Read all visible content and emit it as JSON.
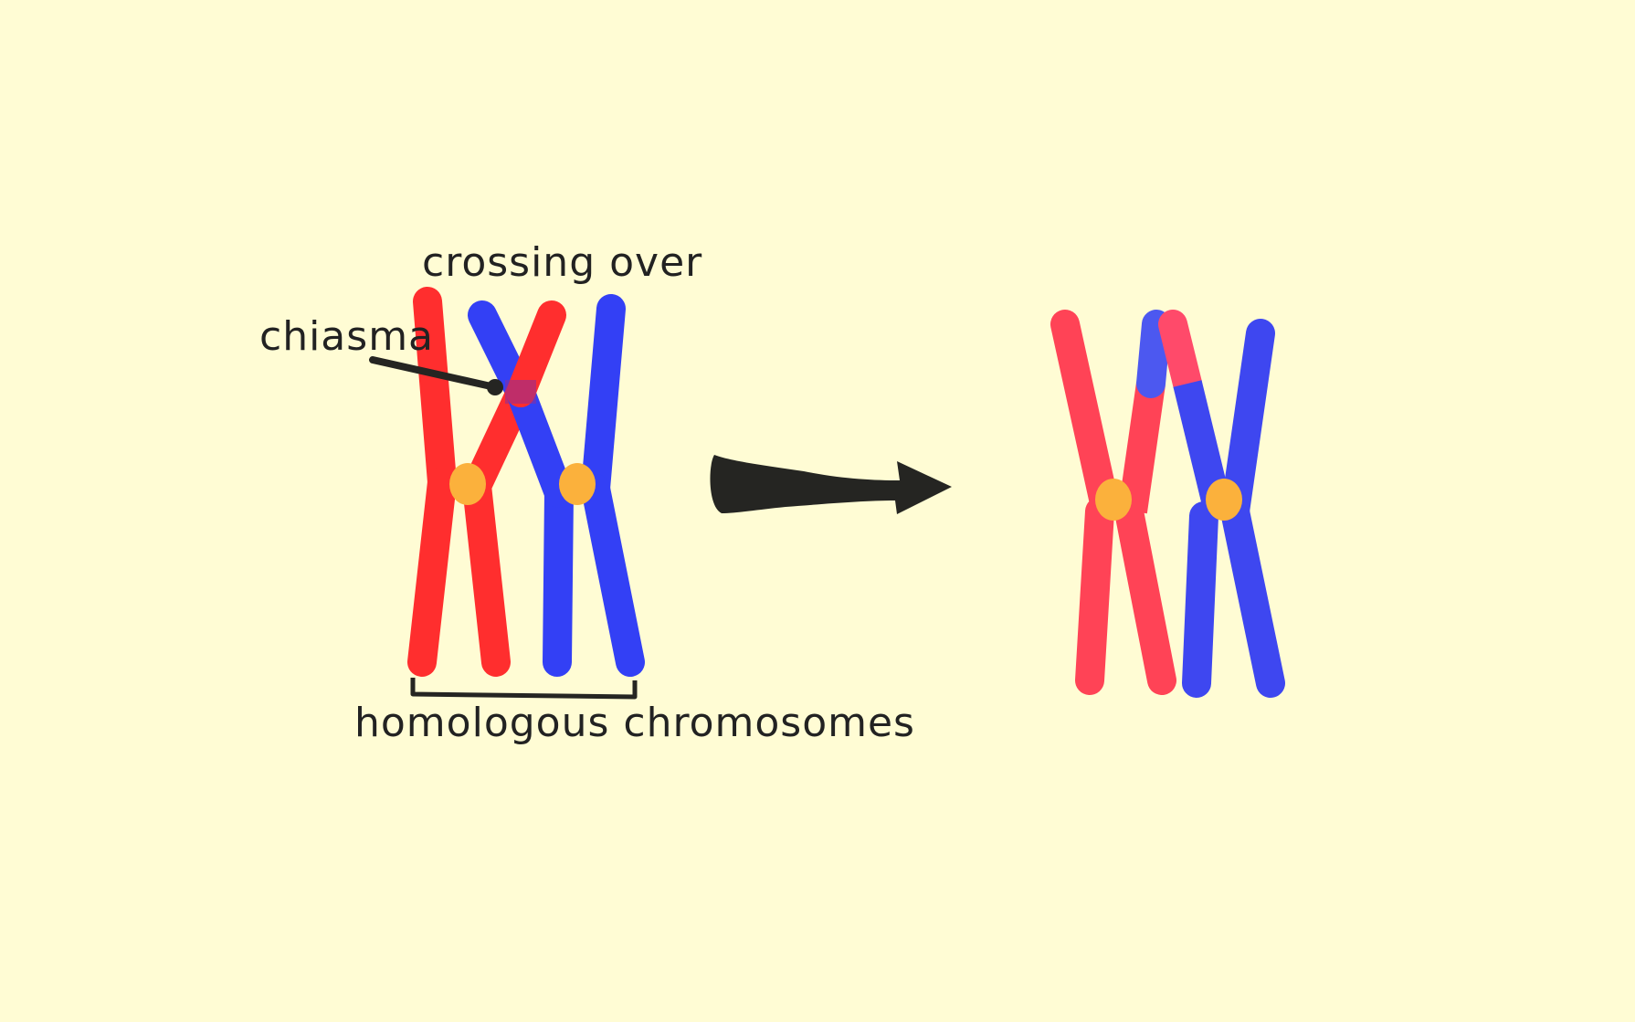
{
  "labels": {
    "crossing_over": "crossing over",
    "chiasma": "chiasma",
    "homologous": "homologous chromosomes"
  },
  "colors": {
    "background": "#FFFCD4",
    "maternal_red": "#FF2E2E",
    "paternal_blue": "#3340F5",
    "recombined_red": "#FF4356",
    "recombined_blue": "#3E47F0",
    "centromere": "#FBB13C",
    "ink": "#252522"
  }
}
